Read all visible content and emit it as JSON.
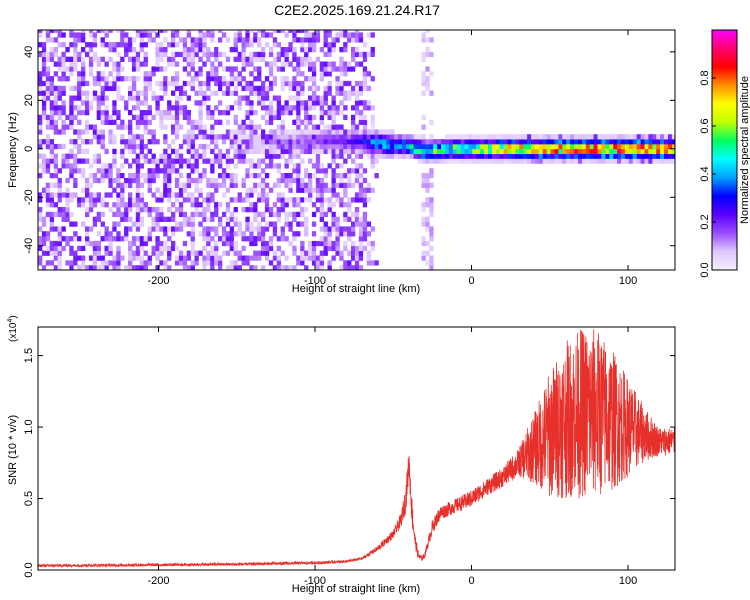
{
  "title": "C2E2.2025.169.21.24.R17",
  "chart_data": [
    {
      "type": "heatmap",
      "xlabel": "Height of straight line (km)",
      "ylabel": "Frequency (Hz)",
      "xlim": [
        -277,
        130
      ],
      "ylim": [
        -50,
        49
      ],
      "xticks": [
        -200,
        -100,
        0,
        100
      ],
      "xtick_labels": [
        "-200",
        "-100",
        "0",
        "100"
      ],
      "yticks": [
        -40,
        -20,
        0,
        20,
        40
      ],
      "ytick_labels": [
        "-40",
        "-20",
        "0",
        "20",
        "40"
      ],
      "colorbar": {
        "label": "Normalized spectral amplitude",
        "range": [
          0,
          1
        ],
        "ticks": [
          0.0,
          0.2,
          0.4,
          0.6,
          0.8
        ],
        "tick_labels": [
          "0.0",
          "0.2",
          "0.4",
          "0.6",
          "0.8"
        ],
        "colors": [
          "#f5eeff",
          "#e0c8ff",
          "#9a4dff",
          "#5a00ff",
          "#0000ff",
          "#00a0ff",
          "#00ffff",
          "#00ff60",
          "#c0ff00",
          "#ffff00",
          "#ff9000",
          "#ff0000",
          "#ff0070",
          "#ff00ff"
        ]
      },
      "features": {
        "noise_region_x": [
          -277,
          -60
        ],
        "noise_column_x": -30,
        "signal_band": {
          "x": [
            -70,
            -40,
            -30,
            -15,
            0,
            30,
            60,
            100,
            130
          ],
          "freq": [
            3,
            1,
            -1,
            0,
            0,
            0,
            0,
            0,
            0
          ],
          "amplitude": [
            0.3,
            0.45,
            0.5,
            0.5,
            0.55,
            0.7,
            0.75,
            0.8,
            0.7
          ]
        }
      }
    },
    {
      "type": "line",
      "xlabel": "Height of straight line (km)",
      "ylabel": "SNR (10 * v/v)",
      "y_multiplier_label": "(x10",
      "y_multiplier_exp": "4",
      "y_multiplier_close": ")",
      "color": "#e8302b",
      "xlim": [
        -277,
        130
      ],
      "ylim": [
        0,
        1.7
      ],
      "xticks": [
        -200,
        -100,
        0,
        100
      ],
      "xtick_labels": [
        "-200",
        "-100",
        "0",
        "100"
      ],
      "yticks": [
        0.0,
        0.5,
        1.0,
        1.5
      ],
      "ytick_labels": [
        "0.0",
        "0.5",
        "1.0",
        "1.5"
      ],
      "series": [
        {
          "name": "SNR",
          "x": [
            -277,
            -150,
            -100,
            -80,
            -70,
            -60,
            -50,
            -45,
            -42,
            -40,
            -38,
            -36,
            -34,
            -32,
            -30,
            -25,
            -20,
            -10,
            0,
            10,
            20,
            30,
            40,
            50,
            60,
            70,
            80,
            90,
            100,
            110,
            120,
            130
          ],
          "y": [
            0.03,
            0.04,
            0.05,
            0.06,
            0.08,
            0.15,
            0.25,
            0.35,
            0.5,
            0.75,
            0.4,
            0.2,
            0.1,
            0.08,
            0.1,
            0.3,
            0.4,
            0.45,
            0.5,
            0.58,
            0.65,
            0.75,
            0.85,
            0.95,
            1.05,
            1.1,
            1.1,
            1.05,
            1.0,
            0.95,
            0.9,
            0.9
          ],
          "fluctuation": [
            0.01,
            0.01,
            0.01,
            0.01,
            0.01,
            0.02,
            0.03,
            0.05,
            0.1,
            0.1,
            0.1,
            0.05,
            0.03,
            0.02,
            0.02,
            0.05,
            0.05,
            0.05,
            0.06,
            0.06,
            0.07,
            0.1,
            0.25,
            0.45,
            0.55,
            0.6,
            0.6,
            0.5,
            0.35,
            0.2,
            0.1,
            0.1
          ]
        }
      ]
    }
  ]
}
